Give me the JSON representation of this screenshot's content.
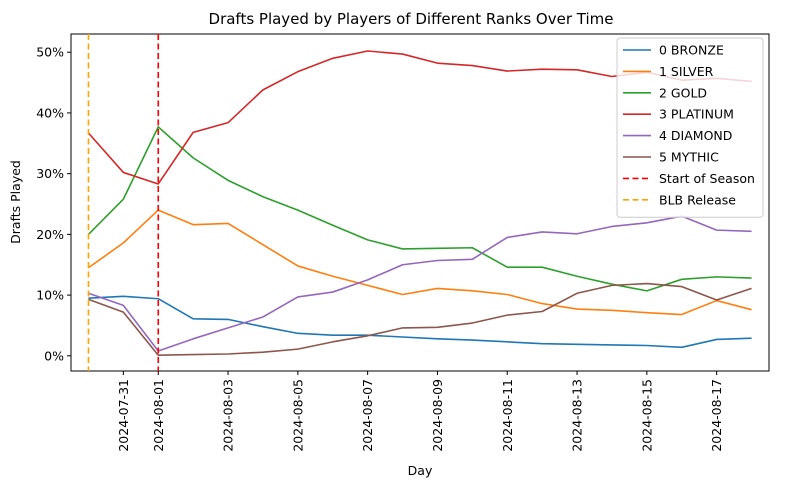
{
  "chart_data": {
    "type": "line",
    "title": "Drafts Played by Players of Different Ranks Over Time",
    "xlabel": "Day",
    "ylabel": "Drafts Played",
    "x": [
      "2024-07-30",
      "2024-07-31",
      "2024-08-01",
      "2024-08-02",
      "2024-08-03",
      "2024-08-04",
      "2024-08-05",
      "2024-08-06",
      "2024-08-07",
      "2024-08-08",
      "2024-08-09",
      "2024-08-10",
      "2024-08-11",
      "2024-08-12",
      "2024-08-13",
      "2024-08-14",
      "2024-08-15",
      "2024-08-16",
      "2024-08-17",
      "2024-08-18"
    ],
    "xlim": [
      "2024-07-29T12:00",
      "2024-08-18T12:00"
    ],
    "ylim": [
      -0.025,
      0.53
    ],
    "x_ticks": [
      "2024-07-31",
      "2024-08-01",
      "2024-08-03",
      "2024-08-05",
      "2024-08-07",
      "2024-08-09",
      "2024-08-11",
      "2024-08-13",
      "2024-08-15",
      "2024-08-17"
    ],
    "y_ticks": [
      0,
      0.1,
      0.2,
      0.3,
      0.4,
      0.5
    ],
    "y_tick_labels": [
      "0%",
      "10%",
      "20%",
      "30%",
      "40%",
      "50%"
    ],
    "legend_position": "top-right",
    "series": [
      {
        "name": "0 BRONZE",
        "color": "#1f77b4",
        "values": [
          0.095,
          0.098,
          0.094,
          0.061,
          0.06,
          0.048,
          0.037,
          0.034,
          0.034,
          0.031,
          0.028,
          0.026,
          0.023,
          0.02,
          0.019,
          0.018,
          0.017,
          0.014,
          0.027,
          0.029
        ]
      },
      {
        "name": "1 SILVER",
        "color": "#ff7f0e",
        "values": [
          0.145,
          0.186,
          0.24,
          0.216,
          0.218,
          0.183,
          0.148,
          0.131,
          0.116,
          0.101,
          0.111,
          0.107,
          0.101,
          0.086,
          0.077,
          0.075,
          0.071,
          0.068,
          0.091,
          0.076
        ]
      },
      {
        "name": "2 GOLD",
        "color": "#2ca02c",
        "values": [
          0.2,
          0.258,
          0.377,
          0.326,
          0.289,
          0.262,
          0.24,
          0.215,
          0.191,
          0.176,
          0.177,
          0.178,
          0.146,
          0.146,
          0.131,
          0.118,
          0.107,
          0.126,
          0.13,
          0.128
        ]
      },
      {
        "name": "3 PLATINUM",
        "color": "#d62728",
        "values": [
          0.367,
          0.302,
          0.283,
          0.368,
          0.384,
          0.438,
          0.468,
          0.49,
          0.502,
          0.497,
          0.482,
          0.478,
          0.469,
          0.472,
          0.471,
          0.46,
          0.467,
          0.454,
          0.457,
          0.452
        ]
      },
      {
        "name": "4 DIAMOND",
        "color": "#9467bd",
        "values": [
          0.103,
          0.083,
          0.008,
          0.028,
          0.046,
          0.064,
          0.097,
          0.105,
          0.125,
          0.15,
          0.157,
          0.159,
          0.195,
          0.204,
          0.201,
          0.213,
          0.219,
          0.23,
          0.207,
          0.205
        ]
      },
      {
        "name": "5 MYTHIC",
        "color": "#8c564b",
        "values": [
          0.093,
          0.072,
          0.001,
          0.002,
          0.003,
          0.006,
          0.011,
          0.023,
          0.033,
          0.046,
          0.047,
          0.054,
          0.067,
          0.073,
          0.103,
          0.116,
          0.119,
          0.114,
          0.092,
          0.111
        ]
      }
    ],
    "vlines": [
      {
        "name": "Start of Season",
        "x": "2024-08-01",
        "color": "#ff0000"
      },
      {
        "name": "BLB Release",
        "x": "2024-07-30",
        "color": "#ffa500"
      }
    ]
  }
}
